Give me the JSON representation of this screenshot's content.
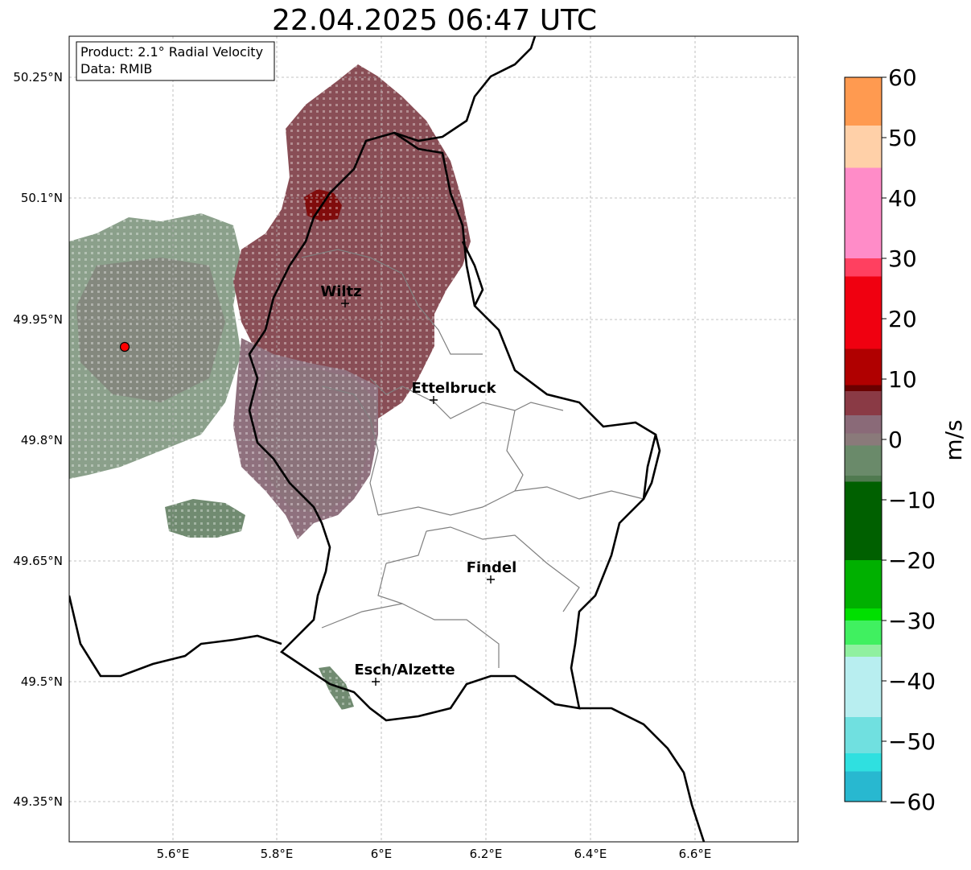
{
  "title": "22.04.2025 06:47 UTC",
  "info": {
    "product": "Product: 2.1° Radial Velocity",
    "data": "Data: RMIB"
  },
  "lat_ticks": [
    "50.25°N",
    "50.1°N",
    "49.95°N",
    "49.8°N",
    "49.65°N",
    "49.5°N",
    "49.35°N"
  ],
  "lon_ticks": [
    "5.6°E",
    "5.8°E",
    "6°E",
    "6.2°E",
    "6.4°E",
    "6.6°E"
  ],
  "cities": [
    {
      "name": "Wiltz"
    },
    {
      "name": "Ettelbruck"
    },
    {
      "name": "Findel"
    },
    {
      "name": "Esch/Alzette"
    }
  ],
  "colorbar": {
    "label": "m/s",
    "ticks": [
      "60",
      "50",
      "40",
      "30",
      "20",
      "10",
      "0",
      "−10",
      "−20",
      "−30",
      "−40",
      "−50",
      "−60"
    ],
    "min": -60,
    "max": 60,
    "colors": {
      "neg_deep": "#1f78b4",
      "neg_cyan": "#2fe0e0",
      "neg_light_cyan": "#b8eef0",
      "neg_light_green": "#90f0a0",
      "neg_green": "#00e000",
      "neg_dark_green": "#006000",
      "zero_grey_green": "#6a8a6a",
      "zero_grey": "#8a7a7a",
      "pos_maroon": "#8a3a45",
      "pos_dark_red": "#6a0000",
      "pos_red": "#f00010",
      "pos_pink": "#ff8cc8",
      "pos_peach": "#ffd0a8",
      "pos_orange": "#ff9a50"
    }
  },
  "colors": {
    "echo_main": "#83454d",
    "echo_grey": "#8a6a78",
    "echo_green": "#6a856a",
    "border": "#000000",
    "canton": "#808080",
    "grid": "#b0b0b0"
  }
}
